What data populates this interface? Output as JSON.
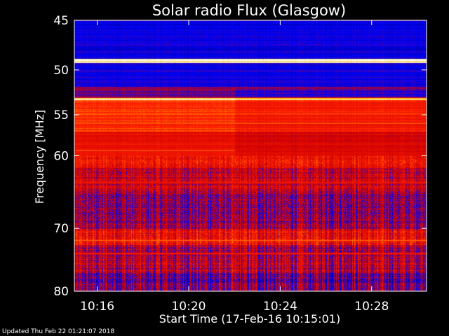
{
  "chart_data": {
    "type": "heatmap",
    "title": "Solar radio Flux (Glasgow)",
    "xlabel": "Start Time (17-Feb-16 10:15:01)",
    "ylabel": "Frequency [MHz]",
    "x_unit": "minutes after 10:00",
    "x_range": [
      15.0,
      30.4
    ],
    "y_range": [
      45,
      80
    ],
    "y_scale": "log",
    "x_ticks": [
      {
        "value": 16,
        "label": "10:16"
      },
      {
        "value": 20,
        "label": "10:20"
      },
      {
        "value": 24,
        "label": "10:24"
      },
      {
        "value": 28,
        "label": "10:28"
      }
    ],
    "y_ticks": [
      {
        "value": 45,
        "label": "45"
      },
      {
        "value": 50,
        "label": "50"
      },
      {
        "value": 55,
        "label": "55"
      },
      {
        "value": 60,
        "label": "60"
      },
      {
        "value": 70,
        "label": "70"
      },
      {
        "value": 80,
        "label": "80"
      }
    ],
    "colormap": [
      "#00004a",
      "#0000ff",
      "#d00000",
      "#ff2000",
      "#ffc000",
      "#ffffff"
    ],
    "frequency_bands": [
      {
        "from": 45.0,
        "to": 48.8,
        "level": 0.18
      },
      {
        "from": 48.8,
        "to": 49.2,
        "level": 0.95
      },
      {
        "from": 49.2,
        "to": 51.8,
        "level": 0.2
      },
      {
        "from": 51.8,
        "to": 53.0,
        "level": 0.32
      },
      {
        "from": 53.0,
        "to": 53.3,
        "level": 0.9
      },
      {
        "from": 53.3,
        "to": 57.0,
        "level": 0.62
      },
      {
        "from": 57.0,
        "to": 61.5,
        "level": 0.5
      },
      {
        "from": 61.5,
        "to": 64.5,
        "level": 0.42
      },
      {
        "from": 64.5,
        "to": 70.0,
        "level": 0.34
      },
      {
        "from": 70.0,
        "to": 72.5,
        "level": 0.5
      },
      {
        "from": 72.5,
        "to": 77.0,
        "level": 0.38
      },
      {
        "from": 77.0,
        "to": 80.0,
        "level": 0.3
      }
    ],
    "bright_lines": [
      {
        "freq": 49.0,
        "level": 1.0
      },
      {
        "freq": 53.1,
        "level": 0.85
      },
      {
        "freq": 54.8,
        "level": 0.75
      },
      {
        "freq": 56.0,
        "level": 0.7
      },
      {
        "freq": 63.5,
        "level": 0.65
      },
      {
        "freq": 71.8,
        "level": 0.75
      },
      {
        "freq": 73.8,
        "level": 0.65
      }
    ],
    "partial_lines": [
      {
        "freq": 59.3,
        "x_from": 15.05,
        "x_to": 22.0,
        "level": 0.8
      }
    ],
    "quiet_after_x": 22.0
  },
  "footer": {
    "updated": "Updated Thu Feb 22 01:21:07 2018"
  }
}
